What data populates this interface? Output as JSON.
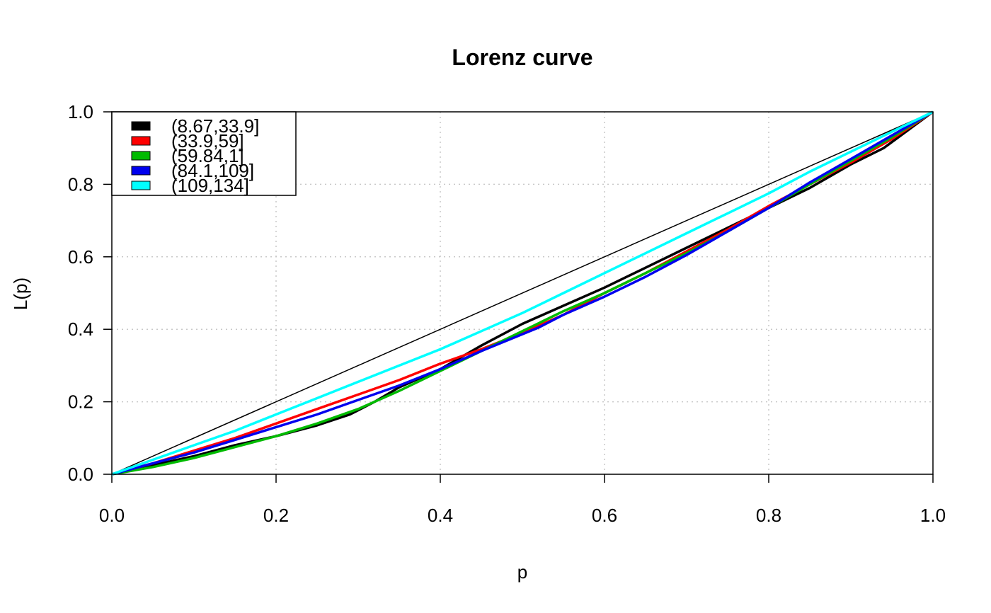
{
  "chart_data": {
    "type": "line",
    "title": "Lorenz curve",
    "xlabel": "p",
    "ylabel": "L(p)",
    "xlim": [
      0,
      1
    ],
    "ylim": [
      0,
      1
    ],
    "x_ticks": [
      "0.0",
      "0.2",
      "0.4",
      "0.6",
      "0.8",
      "1.0"
    ],
    "y_ticks": [
      "0.0",
      "0.2",
      "0.4",
      "0.6",
      "0.8",
      "1.0"
    ],
    "grid": true,
    "legend_position": "top-left",
    "equality_line": {
      "x": [
        0,
        1
      ],
      "y": [
        0,
        1
      ],
      "color": "#000000"
    },
    "series": [
      {
        "name": "(8.67,33.9]",
        "color": "#000000",
        "x": [
          0,
          0.05,
          0.1,
          0.15,
          0.2,
          0.25,
          0.29,
          0.32,
          0.35,
          0.4,
          0.45,
          0.5,
          0.55,
          0.6,
          0.65,
          0.7,
          0.75,
          0.8,
          0.85,
          0.9,
          0.94,
          0.97,
          1.0
        ],
        "y": [
          0,
          0.025,
          0.05,
          0.08,
          0.105,
          0.135,
          0.165,
          0.2,
          0.24,
          0.29,
          0.355,
          0.415,
          0.465,
          0.515,
          0.57,
          0.625,
          0.68,
          0.735,
          0.79,
          0.855,
          0.9,
          0.95,
          1.0
        ]
      },
      {
        "name": "(33.9,59]",
        "color": "#ff0000",
        "x": [
          0,
          0.05,
          0.1,
          0.15,
          0.2,
          0.25,
          0.3,
          0.35,
          0.4,
          0.45,
          0.5,
          0.55,
          0.6,
          0.65,
          0.7,
          0.75,
          0.8,
          0.85,
          0.9,
          0.95,
          1.0
        ],
        "y": [
          0,
          0.03,
          0.065,
          0.1,
          0.14,
          0.18,
          0.22,
          0.26,
          0.305,
          0.345,
          0.39,
          0.44,
          0.5,
          0.555,
          0.615,
          0.675,
          0.74,
          0.8,
          0.86,
          0.925,
          1.0
        ]
      },
      {
        "name": "(59.84,1]",
        "color": "#00bb00",
        "x": [
          0,
          0.05,
          0.1,
          0.15,
          0.2,
          0.25,
          0.3,
          0.35,
          0.4,
          0.45,
          0.5,
          0.55,
          0.6,
          0.65,
          0.7,
          0.75,
          0.8,
          0.85,
          0.9,
          0.95,
          1.0
        ],
        "y": [
          0,
          0.02,
          0.045,
          0.075,
          0.105,
          0.14,
          0.18,
          0.23,
          0.285,
          0.34,
          0.395,
          0.45,
          0.5,
          0.555,
          0.61,
          0.67,
          0.735,
          0.8,
          0.865,
          0.93,
          1.0
        ]
      },
      {
        "name": "(84.1,109]",
        "color": "#0000ee",
        "x": [
          0,
          0.05,
          0.1,
          0.15,
          0.2,
          0.25,
          0.3,
          0.35,
          0.4,
          0.45,
          0.52,
          0.55,
          0.6,
          0.65,
          0.7,
          0.75,
          0.8,
          0.85,
          0.9,
          0.95,
          1.0
        ],
        "y": [
          0,
          0.03,
          0.06,
          0.095,
          0.13,
          0.165,
          0.205,
          0.245,
          0.29,
          0.34,
          0.405,
          0.44,
          0.49,
          0.545,
          0.605,
          0.67,
          0.735,
          0.805,
          0.87,
          0.935,
          1.0
        ]
      },
      {
        "name": "(109,134]",
        "color": "#00ffff",
        "x": [
          0,
          0.05,
          0.1,
          0.15,
          0.2,
          0.25,
          0.3,
          0.35,
          0.4,
          0.45,
          0.5,
          0.55,
          0.6,
          0.65,
          0.7,
          0.75,
          0.8,
          0.85,
          0.9,
          0.95,
          1.0
        ],
        "y": [
          0,
          0.04,
          0.08,
          0.12,
          0.165,
          0.21,
          0.255,
          0.3,
          0.345,
          0.395,
          0.445,
          0.5,
          0.555,
          0.61,
          0.665,
          0.72,
          0.775,
          0.835,
          0.89,
          0.945,
          1.0
        ]
      }
    ]
  }
}
